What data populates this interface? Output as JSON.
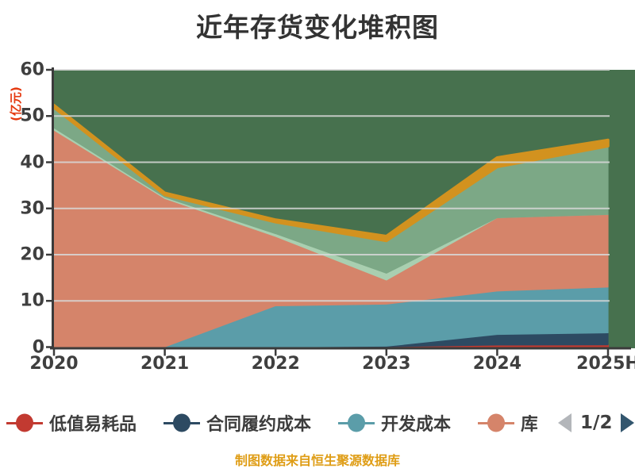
{
  "title": "近年存货变化堆积图",
  "y_axis_name": "(亿元)",
  "footer": "制图数据来自恒生聚源数据库",
  "legend": {
    "items": [
      {
        "label": "低值易耗品",
        "color": "#c23a31",
        "truncated": false
      },
      {
        "label": "合同履约成本",
        "color": "#2d4a62",
        "truncated": false
      },
      {
        "label": "开发成本",
        "color": "#5b9da9",
        "truncated": false
      },
      {
        "label": "库",
        "color": "#d5846a",
        "truncated": true
      }
    ],
    "pagination": {
      "label": "1/2",
      "prev_icon_color": "#b3b6ba",
      "next_icon_color": "#33566e"
    }
  },
  "chart_data": {
    "type": "area",
    "stacked": true,
    "title": "近年存货变化堆积图",
    "ylabel": "(亿元)",
    "categories": [
      "2020",
      "2021",
      "2022",
      "2023",
      "2024",
      "2025H"
    ],
    "ylim": [
      0,
      60
    ],
    "yticks": [
      0,
      10,
      20,
      30,
      40,
      50,
      60
    ],
    "grid": true,
    "legend_position": "bottom",
    "legend_note": "legend paginated 1/2, later series names not visible",
    "plot_background": "#47714e",
    "gridline_color": "#d8d8d8",
    "axis_color": "#3b3b3b",
    "series": [
      {
        "key": "low-value-consumables",
        "name": "低值易耗品",
        "color": "#c23a31",
        "line_width": 2,
        "values": [
          0.05,
          0.05,
          0.05,
          0.1,
          0.45,
          0.5
        ]
      },
      {
        "key": "contract-performance-cost",
        "name": "合同履约成本",
        "color": "#2d4a62",
        "line_width": 1.2,
        "values": [
          0,
          0,
          0,
          0.1,
          2.3,
          2.6
        ]
      },
      {
        "key": "development-cost",
        "name": "开发成本",
        "color": "#5b9da9",
        "line_width": 1.2,
        "values": [
          0,
          0,
          8.9,
          9.1,
          9.4,
          9.9
        ]
      },
      {
        "key": "series4-salmon",
        "name": "库",
        "color": "#d5846a",
        "line_width": 1.2,
        "values": [
          46.9,
          32.1,
          15.0,
          5.2,
          15.85,
          15.7
        ]
      },
      {
        "key": "series5-pale-green",
        "name": "",
        "color": "#a9cfb0",
        "line_width": 1,
        "values": [
          0.5,
          0.3,
          0.6,
          1.5,
          0,
          0
        ]
      },
      {
        "key": "series6-sage-green",
        "name": "",
        "color": "#7ca886",
        "line_width": 1.2,
        "values": [
          4.4,
          0.5,
          2.5,
          7.0,
          11.0,
          14.8
        ]
      },
      {
        "key": "series7-orange-line",
        "name": "",
        "color": "#d2921f",
        "line_width": 3.5,
        "values": [
          0.5,
          0.4,
          0.5,
          1.0,
          2.0,
          1.3
        ]
      }
    ]
  }
}
